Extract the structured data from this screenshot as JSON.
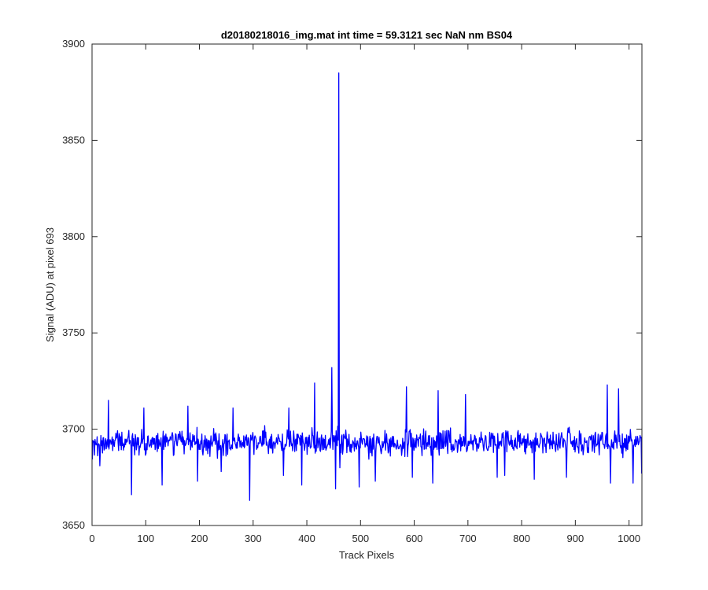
{
  "chart_data": {
    "type": "line",
    "title": "d20180218016_img.mat int time = 59.3121 sec  NaN nm BS04",
    "xlabel": "Track Pixels",
    "ylabel": "Signal (ADU) at pixel 693",
    "xlim": [
      0,
      1024
    ],
    "ylim": [
      3650,
      3900
    ],
    "xticks": [
      0,
      100,
      200,
      300,
      400,
      500,
      600,
      700,
      800,
      900,
      1000
    ],
    "yticks": [
      3650,
      3700,
      3750,
      3800,
      3850,
      3900
    ],
    "grid": false,
    "line_color": "#0000ff",
    "baseline_mean": 3693,
    "noise_amplitude": 9,
    "noise_seed": 20180218,
    "extrema": [
      {
        "x": 14,
        "y": 3681
      },
      {
        "x": 30,
        "y": 3715
      },
      {
        "x": 73,
        "y": 3666
      },
      {
        "x": 96,
        "y": 3711
      },
      {
        "x": 130,
        "y": 3671
      },
      {
        "x": 178,
        "y": 3712
      },
      {
        "x": 196,
        "y": 3673
      },
      {
        "x": 240,
        "y": 3678
      },
      {
        "x": 262,
        "y": 3711
      },
      {
        "x": 293,
        "y": 3663
      },
      {
        "x": 356,
        "y": 3676
      },
      {
        "x": 366,
        "y": 3711
      },
      {
        "x": 390,
        "y": 3671
      },
      {
        "x": 414,
        "y": 3724
      },
      {
        "x": 446,
        "y": 3732
      },
      {
        "x": 453,
        "y": 3669
      },
      {
        "x": 459,
        "y": 3885
      },
      {
        "x": 461,
        "y": 3680
      },
      {
        "x": 497,
        "y": 3670
      },
      {
        "x": 527,
        "y": 3673
      },
      {
        "x": 585,
        "y": 3722
      },
      {
        "x": 596,
        "y": 3675
      },
      {
        "x": 634,
        "y": 3672
      },
      {
        "x": 644,
        "y": 3720
      },
      {
        "x": 695,
        "y": 3718
      },
      {
        "x": 754,
        "y": 3675
      },
      {
        "x": 768,
        "y": 3676
      },
      {
        "x": 823,
        "y": 3674
      },
      {
        "x": 883,
        "y": 3675
      },
      {
        "x": 959,
        "y": 3723
      },
      {
        "x": 965,
        "y": 3672
      },
      {
        "x": 980,
        "y": 3721
      },
      {
        "x": 1007,
        "y": 3672
      },
      {
        "x": 1023,
        "y": 3677
      }
    ]
  }
}
